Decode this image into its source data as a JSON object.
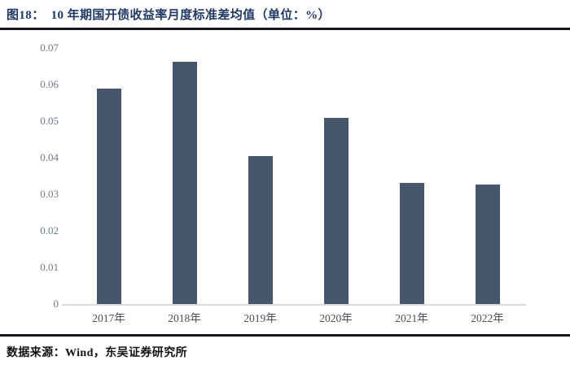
{
  "page": {
    "figure_label": "图18：",
    "figure_title": "10 年期国开债收益率月度标准差均值（单位：%）",
    "source_note": "数据来源：Wind，东吴证券研究所"
  },
  "colors": {
    "title": "#1f3864",
    "bar": "#46566c",
    "rule": "#16161f",
    "axis_line": "#d9d9d9",
    "y_tick_label": "#6e7a88",
    "x_tick_label": "#4a4f5a",
    "footer_text": "#111111"
  },
  "chart_data": {
    "type": "bar",
    "title": "10 年期国开债收益率月度标准差均值",
    "unit": "%",
    "categories": [
      "2017年",
      "2018年",
      "2019年",
      "2020年",
      "2021年",
      "2022年"
    ],
    "values": [
      0.0589,
      0.0662,
      0.0404,
      0.0509,
      0.0332,
      0.0326
    ],
    "ylim": [
      0,
      0.07
    ],
    "yticks": [
      0,
      0.01,
      0.02,
      0.03,
      0.04,
      0.05,
      0.06,
      0.07
    ],
    "xlabel": "",
    "ylabel": "",
    "grid": false,
    "legend": false
  }
}
